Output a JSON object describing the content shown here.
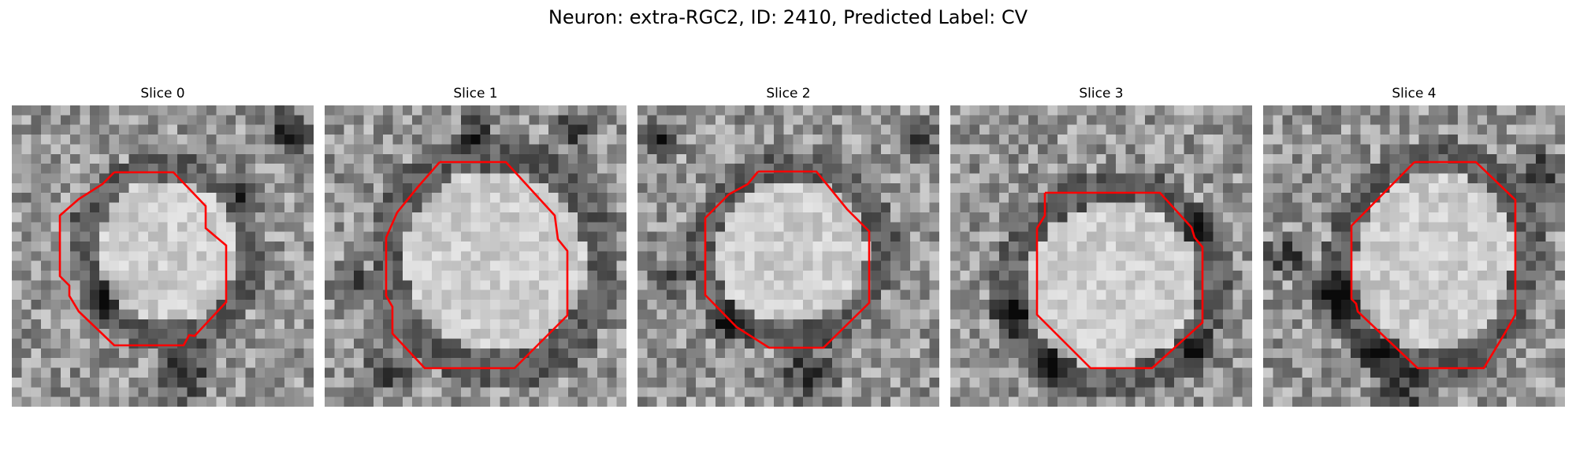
{
  "figure": {
    "title": "Neuron: extra-RGC2, ID: 2410, Predicted Label: CV"
  },
  "contour_color": "#ff0000",
  "panels": [
    {
      "label": "Slice 0"
    },
    {
      "label": "Slice 1"
    },
    {
      "label": "Slice 2"
    },
    {
      "label": "Slice 3"
    },
    {
      "label": "Slice 4"
    }
  ]
}
